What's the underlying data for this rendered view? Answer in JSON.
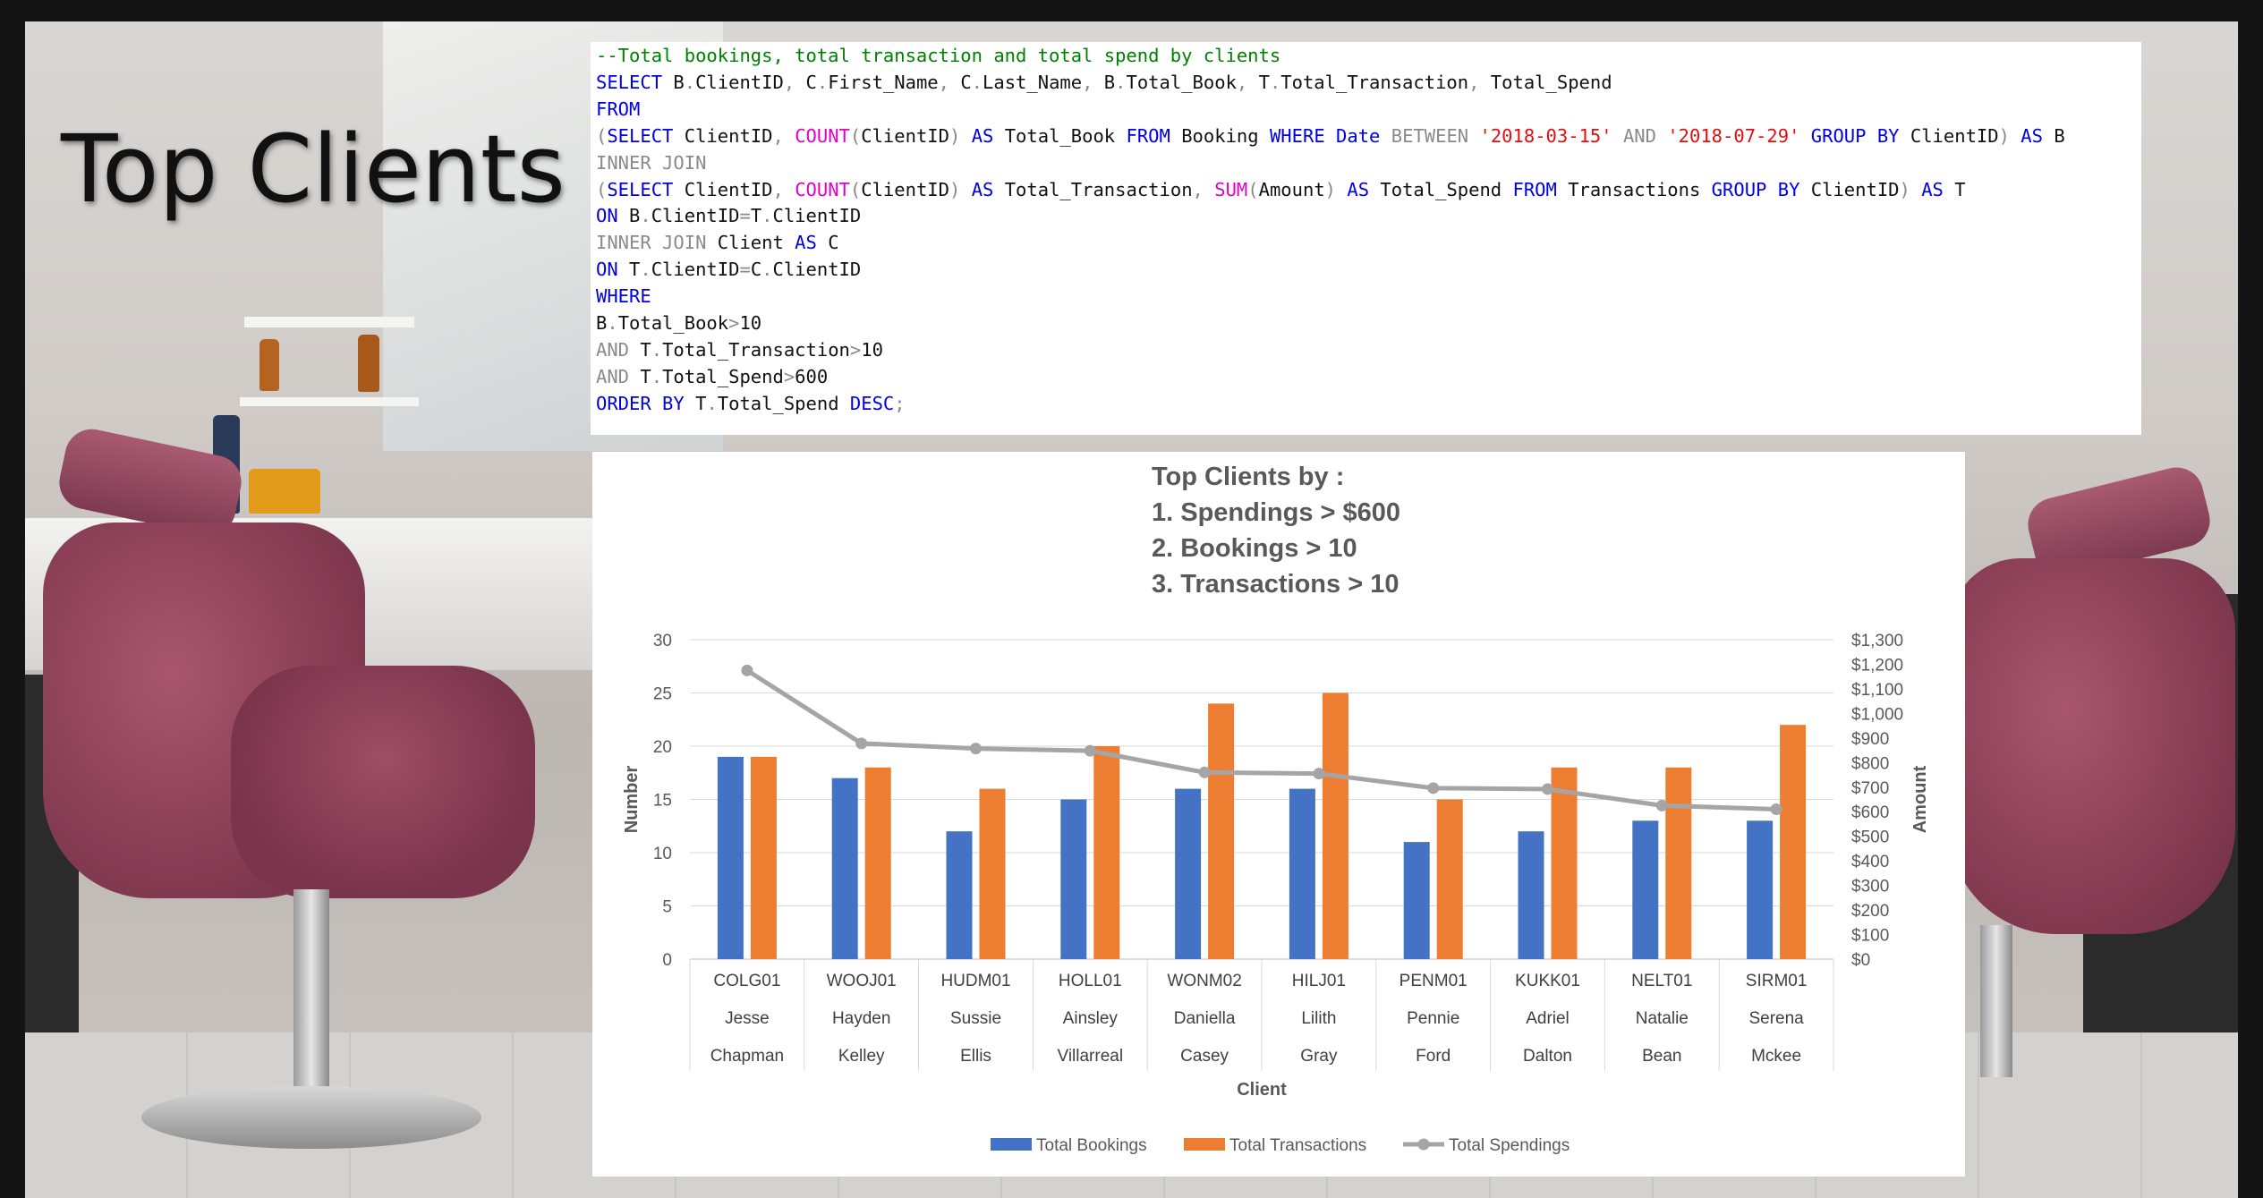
{
  "page_title": "Top Clients",
  "sql_lines": [
    [
      {
        "t": "--Total bookings, total transaction and total spend by clients",
        "c": "cm"
      }
    ],
    [
      {
        "t": "SELECT",
        "c": "kw"
      },
      {
        "t": " B"
      },
      {
        "t": ".",
        "c": "op"
      },
      {
        "t": "ClientID"
      },
      {
        "t": ",",
        "c": "op"
      },
      {
        "t": " C"
      },
      {
        "t": ".",
        "c": "op"
      },
      {
        "t": "First_Name"
      },
      {
        "t": ",",
        "c": "op"
      },
      {
        "t": " C"
      },
      {
        "t": ".",
        "c": "op"
      },
      {
        "t": "Last_Name"
      },
      {
        "t": ",",
        "c": "op"
      },
      {
        "t": " B"
      },
      {
        "t": ".",
        "c": "op"
      },
      {
        "t": "Total_Book"
      },
      {
        "t": ",",
        "c": "op"
      },
      {
        "t": " T"
      },
      {
        "t": ".",
        "c": "op"
      },
      {
        "t": "Total_Transaction"
      },
      {
        "t": ",",
        "c": "op"
      },
      {
        "t": " Total_Spend"
      }
    ],
    [
      {
        "t": "FROM",
        "c": "kw"
      }
    ],
    [
      {
        "t": "(",
        "c": "op"
      },
      {
        "t": "SELECT",
        "c": "kw"
      },
      {
        "t": " ClientID"
      },
      {
        "t": ",",
        "c": "op"
      },
      {
        "t": " "
      },
      {
        "t": "COUNT",
        "c": "fn"
      },
      {
        "t": "(",
        "c": "op"
      },
      {
        "t": "ClientID"
      },
      {
        "t": ")",
        "c": "op"
      },
      {
        "t": " "
      },
      {
        "t": "AS",
        "c": "kw"
      },
      {
        "t": " Total_Book "
      },
      {
        "t": "FROM",
        "c": "kw"
      },
      {
        "t": " Booking "
      },
      {
        "t": "WHERE",
        "c": "kw"
      },
      {
        "t": " "
      },
      {
        "t": "Date",
        "c": "kw"
      },
      {
        "t": " "
      },
      {
        "t": "BETWEEN",
        "c": "op"
      },
      {
        "t": " "
      },
      {
        "t": "'2018-03-15'",
        "c": "str"
      },
      {
        "t": " "
      },
      {
        "t": "AND",
        "c": "op"
      },
      {
        "t": " "
      },
      {
        "t": "'2018-07-29'",
        "c": "str"
      },
      {
        "t": " "
      },
      {
        "t": "GROUP BY",
        "c": "kw"
      },
      {
        "t": " ClientID"
      },
      {
        "t": ")",
        "c": "op"
      },
      {
        "t": " "
      },
      {
        "t": "AS",
        "c": "kw"
      },
      {
        "t": " B"
      }
    ],
    [
      {
        "t": "INNER JOIN",
        "c": "op"
      }
    ],
    [
      {
        "t": "(",
        "c": "op"
      },
      {
        "t": "SELECT",
        "c": "kw"
      },
      {
        "t": " ClientID"
      },
      {
        "t": ",",
        "c": "op"
      },
      {
        "t": " "
      },
      {
        "t": "COUNT",
        "c": "fn"
      },
      {
        "t": "(",
        "c": "op"
      },
      {
        "t": "ClientID"
      },
      {
        "t": ")",
        "c": "op"
      },
      {
        "t": " "
      },
      {
        "t": "AS",
        "c": "kw"
      },
      {
        "t": " Total_Transaction"
      },
      {
        "t": ",",
        "c": "op"
      },
      {
        "t": " "
      },
      {
        "t": "SUM",
        "c": "fn"
      },
      {
        "t": "(",
        "c": "op"
      },
      {
        "t": "Amount"
      },
      {
        "t": ")",
        "c": "op"
      },
      {
        "t": " "
      },
      {
        "t": "AS",
        "c": "kw"
      },
      {
        "t": " Total_Spend "
      },
      {
        "t": "FROM",
        "c": "kw"
      },
      {
        "t": " Transactions "
      },
      {
        "t": "GROUP BY",
        "c": "kw"
      },
      {
        "t": " ClientID"
      },
      {
        "t": ")",
        "c": "op"
      },
      {
        "t": " "
      },
      {
        "t": "AS",
        "c": "kw"
      },
      {
        "t": " T"
      }
    ],
    [
      {
        "t": "ON",
        "c": "kw"
      },
      {
        "t": " B"
      },
      {
        "t": ".",
        "c": "op"
      },
      {
        "t": "ClientID"
      },
      {
        "t": "=",
        "c": "op"
      },
      {
        "t": "T"
      },
      {
        "t": ".",
        "c": "op"
      },
      {
        "t": "ClientID"
      }
    ],
    [
      {
        "t": "INNER JOIN",
        "c": "op"
      },
      {
        "t": " Client "
      },
      {
        "t": "AS",
        "c": "kw"
      },
      {
        "t": " C"
      }
    ],
    [
      {
        "t": "ON",
        "c": "kw"
      },
      {
        "t": " T"
      },
      {
        "t": ".",
        "c": "op"
      },
      {
        "t": "ClientID"
      },
      {
        "t": "=",
        "c": "op"
      },
      {
        "t": "C"
      },
      {
        "t": ".",
        "c": "op"
      },
      {
        "t": "ClientID"
      }
    ],
    [
      {
        "t": "WHERE",
        "c": "kw"
      }
    ],
    [
      {
        "t": "B"
      },
      {
        "t": ".",
        "c": "op"
      },
      {
        "t": "Total_Book"
      },
      {
        "t": ">",
        "c": "op"
      },
      {
        "t": "10"
      }
    ],
    [
      {
        "t": "AND",
        "c": "op"
      },
      {
        "t": " T"
      },
      {
        "t": ".",
        "c": "op"
      },
      {
        "t": "Total_Transaction"
      },
      {
        "t": ">",
        "c": "op"
      },
      {
        "t": "10"
      }
    ],
    [
      {
        "t": "AND",
        "c": "op"
      },
      {
        "t": " T"
      },
      {
        "t": ".",
        "c": "op"
      },
      {
        "t": "Total_Spend"
      },
      {
        "t": ">",
        "c": "op"
      },
      {
        "t": "600"
      }
    ],
    [
      {
        "t": "ORDER BY",
        "c": "kw"
      },
      {
        "t": " T"
      },
      {
        "t": ".",
        "c": "op"
      },
      {
        "t": "Total_Spend "
      },
      {
        "t": "DESC",
        "c": "kw"
      },
      {
        "t": ";",
        "c": "op"
      }
    ]
  ],
  "chart_data": {
    "type": "bar",
    "title_lines": [
      "Top Clients by :",
      "1. Spendings >  $600",
      "2. Bookings > 10",
      "3. Transactions > 10"
    ],
    "xlabel": "Client",
    "ylabel": "Number",
    "y2label": "Amount",
    "categories": [
      [
        "COLG01",
        "Jesse",
        "Chapman"
      ],
      [
        "WOOJ01",
        "Hayden",
        "Kelley"
      ],
      [
        "HUDM01",
        "Sussie",
        "Ellis"
      ],
      [
        "HOLL01",
        "Ainsley",
        "Villarreal"
      ],
      [
        "WONM02",
        "Daniella",
        "Casey"
      ],
      [
        "HILJ01",
        "Lilith",
        "Gray"
      ],
      [
        "PENM01",
        "Pennie",
        "Ford"
      ],
      [
        "KUKK01",
        "Adriel",
        "Dalton"
      ],
      [
        "NELT01",
        "Natalie",
        "Bean"
      ],
      [
        "SIRM01",
        "Serena",
        "Mckee"
      ]
    ],
    "ylim": [
      0,
      30
    ],
    "yticks": [
      "0",
      "5",
      "10",
      "15",
      "20",
      "25",
      "30"
    ],
    "y2lim": [
      0,
      1300
    ],
    "y2ticks": [
      "$0",
      "$100",
      "$200",
      "$300",
      "$400",
      "$500",
      "$600",
      "$700",
      "$800",
      "$900",
      "$1,000",
      "$1,100",
      "$1,200",
      "$1,300"
    ],
    "series": [
      {
        "name": "Total Bookings",
        "kind": "bar",
        "axis": "left",
        "color": "#4472c4",
        "values": [
          19,
          17,
          12,
          15,
          16,
          16,
          11,
          12,
          13,
          13
        ]
      },
      {
        "name": "Total Transactions",
        "kind": "bar",
        "axis": "left",
        "color": "#ed7d31",
        "values": [
          19,
          18,
          16,
          20,
          24,
          25,
          15,
          18,
          18,
          22
        ]
      },
      {
        "name": "Total Spendings",
        "kind": "line",
        "axis": "right",
        "color": "#a5a5a5",
        "values": [
          1175,
          878,
          857,
          848,
          760,
          755,
          696,
          692,
          625,
          610
        ]
      }
    ],
    "legend": "bottom",
    "grid": true
  }
}
